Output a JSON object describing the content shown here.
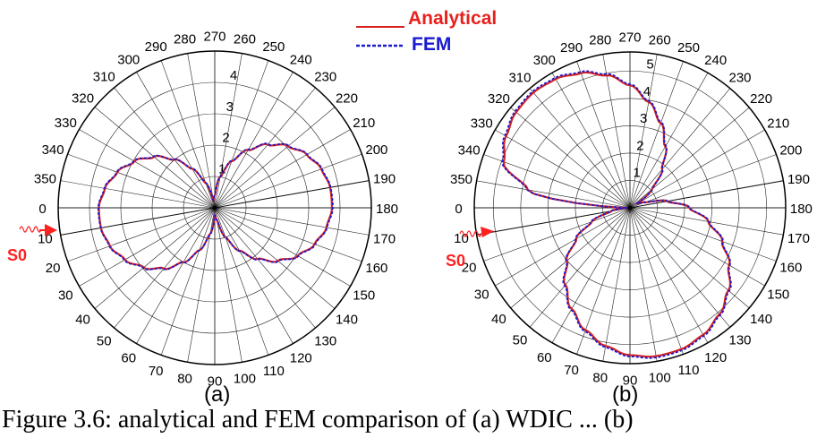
{
  "figure": {
    "caption": "Figure 3.6: analytical and FEM comparison of (a) WDIC ... (b)",
    "legend": {
      "placement": "top-center",
      "entries": [
        {
          "label": "Analytical",
          "color": "#d62020",
          "style": "solid"
        },
        {
          "label": "FEM",
          "color": "#1a1ad0",
          "style": "dashed"
        }
      ]
    },
    "source": {
      "label": "S0",
      "color": "#ff2020"
    }
  },
  "chart_data": [
    {
      "type": "line",
      "projection": "polar",
      "panel_label": "(a)",
      "title": "",
      "angle_unit": "degrees",
      "angle_ticks": [
        0,
        10,
        20,
        30,
        40,
        50,
        60,
        70,
        80,
        90,
        100,
        110,
        120,
        130,
        140,
        150,
        160,
        170,
        180,
        190,
        200,
        210,
        220,
        230,
        240,
        250,
        260,
        270,
        280,
        290,
        300,
        310,
        320,
        330,
        340,
        350
      ],
      "angle_direction": "0 at left, 90 at bottom, 180 at right, 270 at top",
      "radial_ticks": [
        1,
        2,
        3,
        4
      ],
      "rlim": [
        0,
        5
      ],
      "grid": true,
      "series": [
        {
          "name": "Analytical",
          "color": "#d62020",
          "angles": [
            0,
            10,
            20,
            30,
            40,
            50,
            60,
            70,
            80,
            90,
            100,
            110,
            120,
            130,
            140,
            150,
            160,
            170,
            180,
            190,
            200,
            210,
            220,
            230,
            240,
            250,
            260,
            270,
            280,
            290,
            300,
            310,
            320,
            330,
            340,
            350
          ],
          "values": [
            3.7,
            3.69,
            3.56,
            3.31,
            2.96,
            2.53,
            2.01,
            1.44,
            0.84,
            0.23,
            0.39,
            1.0,
            1.58,
            2.13,
            2.63,
            3.06,
            3.39,
            3.62,
            3.74,
            3.74,
            3.62,
            3.39,
            3.06,
            2.63,
            2.13,
            1.58,
            1.0,
            0.39,
            0.23,
            0.84,
            1.44,
            2.01,
            2.53,
            2.96,
            3.31,
            3.56
          ]
        },
        {
          "name": "FEM",
          "color": "#1a1ad0",
          "angles": [
            0,
            10,
            20,
            30,
            40,
            50,
            60,
            70,
            80,
            90,
            100,
            110,
            120,
            130,
            140,
            150,
            160,
            170,
            180,
            190,
            200,
            210,
            220,
            230,
            240,
            250,
            260,
            270,
            280,
            290,
            300,
            310,
            320,
            330,
            340,
            350
          ],
          "values": [
            3.72,
            3.7,
            3.58,
            3.33,
            2.98,
            2.55,
            2.02,
            1.45,
            0.85,
            0.24,
            0.4,
            1.02,
            1.6,
            2.15,
            2.65,
            3.08,
            3.41,
            3.64,
            3.77,
            3.76,
            3.64,
            3.41,
            3.08,
            2.65,
            2.15,
            1.6,
            1.02,
            0.4,
            0.24,
            0.85,
            1.45,
            2.02,
            2.55,
            2.98,
            3.33,
            3.58
          ]
        }
      ]
    },
    {
      "type": "line",
      "projection": "polar",
      "panel_label": "(b)",
      "title": "",
      "angle_unit": "degrees",
      "angle_ticks": [
        0,
        10,
        20,
        30,
        40,
        50,
        60,
        70,
        80,
        90,
        100,
        110,
        120,
        130,
        140,
        150,
        160,
        170,
        180,
        190,
        200,
        210,
        220,
        230,
        240,
        250,
        260,
        270,
        280,
        290,
        300,
        310,
        320,
        330,
        340,
        350
      ],
      "angle_direction": "0 at left, 90 at bottom, 180 at right, 270 at top",
      "radial_ticks": [
        1,
        2,
        3,
        4,
        5
      ],
      "rlim": [
        0,
        5.7
      ],
      "grid": true,
      "series": [
        {
          "name": "Analytical",
          "color": "#d62020",
          "angles": [
            0,
            10,
            20,
            30,
            40,
            50,
            60,
            70,
            80,
            90,
            100,
            110,
            120,
            130,
            140,
            150,
            160,
            170,
            180,
            190,
            200,
            210,
            220,
            230,
            240,
            250,
            260,
            270,
            280,
            290,
            300,
            310,
            320,
            330,
            340,
            350
          ],
          "values": [
            0.1,
            0.69,
            1.49,
            2.27,
            3.01,
            3.68,
            4.27,
            4.76,
            5.13,
            5.39,
            5.51,
            5.5,
            5.36,
            5.09,
            4.7,
            4.19,
            3.59,
            2.91,
            2.17,
            1.38,
            0.58,
            0.3,
            1.05,
            1.83,
            2.59,
            3.29,
            3.93,
            4.48,
            4.92,
            5.24,
            5.44,
            5.5,
            5.44,
            5.24,
            4.92,
            3.8
          ]
        },
        {
          "name": "FEM",
          "color": "#1a1ad0",
          "angles": [
            0,
            10,
            20,
            30,
            40,
            50,
            60,
            70,
            80,
            90,
            100,
            110,
            120,
            130,
            140,
            150,
            160,
            170,
            180,
            190,
            200,
            210,
            220,
            230,
            240,
            250,
            260,
            270,
            280,
            290,
            300,
            310,
            320,
            330,
            340,
            350
          ],
          "values": [
            0.11,
            0.7,
            1.51,
            2.3,
            3.05,
            3.72,
            4.31,
            4.81,
            5.18,
            5.44,
            5.56,
            5.55,
            5.41,
            5.13,
            4.74,
            4.22,
            3.62,
            2.94,
            2.19,
            1.4,
            0.59,
            0.31,
            1.07,
            1.85,
            2.62,
            3.33,
            3.97,
            4.52,
            4.97,
            5.29,
            5.49,
            5.55,
            5.49,
            5.29,
            4.97,
            3.84
          ]
        }
      ]
    }
  ]
}
